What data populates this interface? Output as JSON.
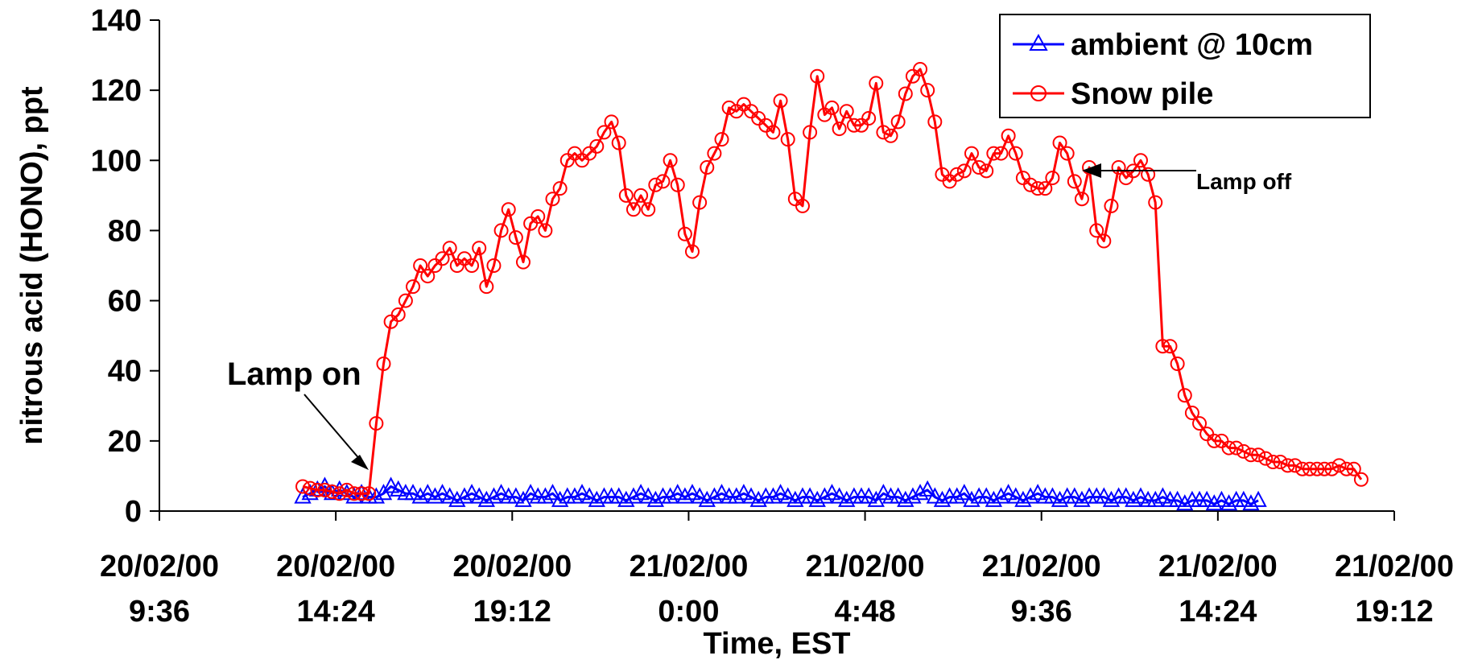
{
  "chart_data": {
    "type": "line",
    "xlabel": "Time, EST",
    "ylabel": "nitrous acid (HONO), ppt",
    "ylim": [
      0,
      140
    ],
    "yticks": [
      0,
      20,
      40,
      60,
      80,
      100,
      120,
      140
    ],
    "xlim_hours": [
      9.6,
      43.2
    ],
    "xticks": [
      {
        "h": 9.6,
        "date": "20/02/00",
        "time": "9:36"
      },
      {
        "h": 14.4,
        "date": "20/02/00",
        "time": "14:24"
      },
      {
        "h": 19.2,
        "date": "20/02/00",
        "time": "19:12"
      },
      {
        "h": 24.0,
        "date": "21/02/00",
        "time": "0:00"
      },
      {
        "h": 28.8,
        "date": "21/02/00",
        "time": "4:48"
      },
      {
        "h": 33.6,
        "date": "21/02/00",
        "time": "9:36"
      },
      {
        "h": 38.4,
        "date": "21/02/00",
        "time": "14:24"
      },
      {
        "h": 43.2,
        "date": "21/02/00",
        "time": "19:12"
      }
    ],
    "legend_position": "top-right",
    "annotations": [
      {
        "text": "Lamp on",
        "h": 15.2,
        "y": 5
      },
      {
        "text": "Lamp off",
        "h": 34.0,
        "y": 97
      }
    ],
    "series": [
      {
        "name": "ambient @ 10cm",
        "color": "#0000ff",
        "marker": "triangle",
        "points": [
          [
            13.5,
            4
          ],
          [
            13.7,
            5
          ],
          [
            13.9,
            6
          ],
          [
            14.1,
            7
          ],
          [
            14.3,
            5
          ],
          [
            14.5,
            6
          ],
          [
            14.7,
            5
          ],
          [
            14.9,
            4
          ],
          [
            15.1,
            5
          ],
          [
            15.3,
            4
          ],
          [
            15.5,
            4
          ],
          [
            15.7,
            5
          ],
          [
            15.9,
            7
          ],
          [
            16.1,
            6
          ],
          [
            16.3,
            5
          ],
          [
            16.5,
            5
          ],
          [
            16.7,
            4
          ],
          [
            16.9,
            5
          ],
          [
            17.1,
            4
          ],
          [
            17.3,
            5
          ],
          [
            17.5,
            4
          ],
          [
            17.7,
            3
          ],
          [
            17.9,
            4
          ],
          [
            18.1,
            5
          ],
          [
            18.3,
            4
          ],
          [
            18.5,
            3
          ],
          [
            18.7,
            4
          ],
          [
            18.9,
            5
          ],
          [
            19.1,
            4
          ],
          [
            19.3,
            4
          ],
          [
            19.5,
            3
          ],
          [
            19.7,
            5
          ],
          [
            19.9,
            4
          ],
          [
            20.1,
            4
          ],
          [
            20.3,
            5
          ],
          [
            20.5,
            3
          ],
          [
            20.7,
            4
          ],
          [
            20.9,
            4
          ],
          [
            21.1,
            5
          ],
          [
            21.3,
            4
          ],
          [
            21.5,
            3
          ],
          [
            21.7,
            4
          ],
          [
            21.9,
            4
          ],
          [
            22.1,
            4
          ],
          [
            22.3,
            3
          ],
          [
            22.5,
            4
          ],
          [
            22.7,
            5
          ],
          [
            22.9,
            4
          ],
          [
            23.1,
            3
          ],
          [
            23.3,
            4
          ],
          [
            23.5,
            4
          ],
          [
            23.7,
            5
          ],
          [
            23.9,
            4
          ],
          [
            24.1,
            5
          ],
          [
            24.3,
            4
          ],
          [
            24.5,
            3
          ],
          [
            24.7,
            4
          ],
          [
            24.9,
            5
          ],
          [
            25.1,
            4
          ],
          [
            25.3,
            4
          ],
          [
            25.5,
            5
          ],
          [
            25.7,
            4
          ],
          [
            25.9,
            3
          ],
          [
            26.1,
            4
          ],
          [
            26.3,
            4
          ],
          [
            26.5,
            5
          ],
          [
            26.7,
            4
          ],
          [
            26.9,
            3
          ],
          [
            27.1,
            4
          ],
          [
            27.3,
            4
          ],
          [
            27.5,
            3
          ],
          [
            27.7,
            4
          ],
          [
            27.9,
            5
          ],
          [
            28.1,
            4
          ],
          [
            28.3,
            3
          ],
          [
            28.5,
            4
          ],
          [
            28.7,
            4
          ],
          [
            28.9,
            4
          ],
          [
            29.1,
            3
          ],
          [
            29.3,
            5
          ],
          [
            29.5,
            4
          ],
          [
            29.7,
            4
          ],
          [
            29.9,
            3
          ],
          [
            30.1,
            4
          ],
          [
            30.3,
            5
          ],
          [
            30.5,
            6
          ],
          [
            30.7,
            4
          ],
          [
            30.9,
            3
          ],
          [
            31.1,
            4
          ],
          [
            31.3,
            4
          ],
          [
            31.5,
            5
          ],
          [
            31.7,
            3
          ],
          [
            31.9,
            4
          ],
          [
            32.1,
            4
          ],
          [
            32.3,
            3
          ],
          [
            32.5,
            4
          ],
          [
            32.7,
            5
          ],
          [
            32.9,
            4
          ],
          [
            33.1,
            3
          ],
          [
            33.3,
            4
          ],
          [
            33.5,
            5
          ],
          [
            33.7,
            4
          ],
          [
            33.9,
            4
          ],
          [
            34.1,
            3
          ],
          [
            34.3,
            4
          ],
          [
            34.5,
            4
          ],
          [
            34.7,
            3
          ],
          [
            34.9,
            4
          ],
          [
            35.1,
            4
          ],
          [
            35.3,
            4
          ],
          [
            35.5,
            3
          ],
          [
            35.7,
            4
          ],
          [
            35.9,
            4
          ],
          [
            36.1,
            3
          ],
          [
            36.3,
            4
          ],
          [
            36.5,
            3
          ],
          [
            36.7,
            3
          ],
          [
            36.9,
            4
          ],
          [
            37.1,
            3
          ],
          [
            37.3,
            3
          ],
          [
            37.5,
            2
          ],
          [
            37.7,
            3
          ],
          [
            37.9,
            3
          ],
          [
            38.1,
            3
          ],
          [
            38.3,
            2
          ],
          [
            38.5,
            3
          ],
          [
            38.7,
            2
          ],
          [
            38.9,
            3
          ],
          [
            39.1,
            3
          ],
          [
            39.3,
            2
          ],
          [
            39.5,
            3
          ]
        ]
      },
      {
        "name": "Snow pile",
        "color": "#ff0000",
        "marker": "circle",
        "points": [
          [
            13.5,
            7
          ],
          [
            13.7,
            6.5
          ],
          [
            13.9,
            6
          ],
          [
            14.1,
            6
          ],
          [
            14.3,
            5.5
          ],
          [
            14.5,
            5
          ],
          [
            14.7,
            6
          ],
          [
            14.9,
            5
          ],
          [
            15.1,
            5
          ],
          [
            15.3,
            5
          ],
          [
            15.5,
            25
          ],
          [
            15.7,
            42
          ],
          [
            15.9,
            54
          ],
          [
            16.1,
            56
          ],
          [
            16.3,
            60
          ],
          [
            16.5,
            64
          ],
          [
            16.7,
            70
          ],
          [
            16.9,
            67
          ],
          [
            17.1,
            70
          ],
          [
            17.3,
            72
          ],
          [
            17.5,
            75
          ],
          [
            17.7,
            70
          ],
          [
            17.9,
            72
          ],
          [
            18.1,
            70
          ],
          [
            18.3,
            75
          ],
          [
            18.5,
            64
          ],
          [
            18.7,
            70
          ],
          [
            18.9,
            80
          ],
          [
            19.1,
            86
          ],
          [
            19.3,
            78
          ],
          [
            19.5,
            71
          ],
          [
            19.7,
            82
          ],
          [
            19.9,
            84
          ],
          [
            20.1,
            80
          ],
          [
            20.3,
            89
          ],
          [
            20.5,
            92
          ],
          [
            20.7,
            100
          ],
          [
            20.9,
            102
          ],
          [
            21.1,
            100
          ],
          [
            21.3,
            102
          ],
          [
            21.5,
            104
          ],
          [
            21.7,
            108
          ],
          [
            21.9,
            111
          ],
          [
            22.1,
            105
          ],
          [
            22.3,
            90
          ],
          [
            22.5,
            86
          ],
          [
            22.7,
            90
          ],
          [
            22.9,
            86
          ],
          [
            23.1,
            93
          ],
          [
            23.3,
            94
          ],
          [
            23.5,
            100
          ],
          [
            23.7,
            93
          ],
          [
            23.9,
            79
          ],
          [
            24.1,
            74
          ],
          [
            24.3,
            88
          ],
          [
            24.5,
            98
          ],
          [
            24.7,
            102
          ],
          [
            24.9,
            106
          ],
          [
            25.1,
            115
          ],
          [
            25.3,
            114
          ],
          [
            25.5,
            116
          ],
          [
            25.7,
            114
          ],
          [
            25.9,
            112
          ],
          [
            26.1,
            110
          ],
          [
            26.3,
            108
          ],
          [
            26.5,
            117
          ],
          [
            26.7,
            106
          ],
          [
            26.9,
            89
          ],
          [
            27.1,
            87
          ],
          [
            27.3,
            108
          ],
          [
            27.5,
            124
          ],
          [
            27.7,
            113
          ],
          [
            27.9,
            115
          ],
          [
            28.1,
            109
          ],
          [
            28.3,
            114
          ],
          [
            28.5,
            110
          ],
          [
            28.7,
            110
          ],
          [
            28.9,
            112
          ],
          [
            29.1,
            122
          ],
          [
            29.3,
            108
          ],
          [
            29.5,
            107
          ],
          [
            29.7,
            111
          ],
          [
            29.9,
            119
          ],
          [
            30.1,
            124
          ],
          [
            30.3,
            126
          ],
          [
            30.5,
            120
          ],
          [
            30.7,
            111
          ],
          [
            30.9,
            96
          ],
          [
            31.1,
            94
          ],
          [
            31.3,
            96
          ],
          [
            31.5,
            97
          ],
          [
            31.7,
            102
          ],
          [
            31.9,
            98
          ],
          [
            32.1,
            97
          ],
          [
            32.3,
            102
          ],
          [
            32.5,
            102
          ],
          [
            32.7,
            107
          ],
          [
            32.9,
            102
          ],
          [
            33.1,
            95
          ],
          [
            33.3,
            93
          ],
          [
            33.5,
            92
          ],
          [
            33.7,
            92
          ],
          [
            33.9,
            95
          ],
          [
            34.1,
            105
          ],
          [
            34.3,
            102
          ],
          [
            34.5,
            94
          ],
          [
            34.7,
            89
          ],
          [
            34.9,
            98
          ],
          [
            35.1,
            80
          ],
          [
            35.3,
            77
          ],
          [
            35.5,
            87
          ],
          [
            35.7,
            98
          ],
          [
            35.9,
            95
          ],
          [
            36.1,
            97
          ],
          [
            36.3,
            100
          ],
          [
            36.5,
            96
          ],
          [
            36.7,
            88
          ],
          [
            36.9,
            47
          ],
          [
            37.1,
            47
          ],
          [
            37.3,
            42
          ],
          [
            37.5,
            33
          ],
          [
            37.7,
            28
          ],
          [
            37.9,
            25
          ],
          [
            38.1,
            22
          ],
          [
            38.3,
            20
          ],
          [
            38.5,
            20
          ],
          [
            38.7,
            18
          ],
          [
            38.9,
            18
          ],
          [
            39.1,
            17
          ],
          [
            39.3,
            16
          ],
          [
            39.5,
            16
          ],
          [
            39.7,
            15
          ],
          [
            39.9,
            14
          ],
          [
            40.1,
            14
          ],
          [
            40.3,
            13
          ],
          [
            40.5,
            13
          ],
          [
            40.7,
            12
          ],
          [
            40.9,
            12
          ],
          [
            41.1,
            12
          ],
          [
            41.3,
            12
          ],
          [
            41.5,
            12
          ],
          [
            41.7,
            13
          ],
          [
            41.9,
            12
          ],
          [
            42.1,
            12
          ],
          [
            42.3,
            9
          ]
        ]
      }
    ]
  }
}
